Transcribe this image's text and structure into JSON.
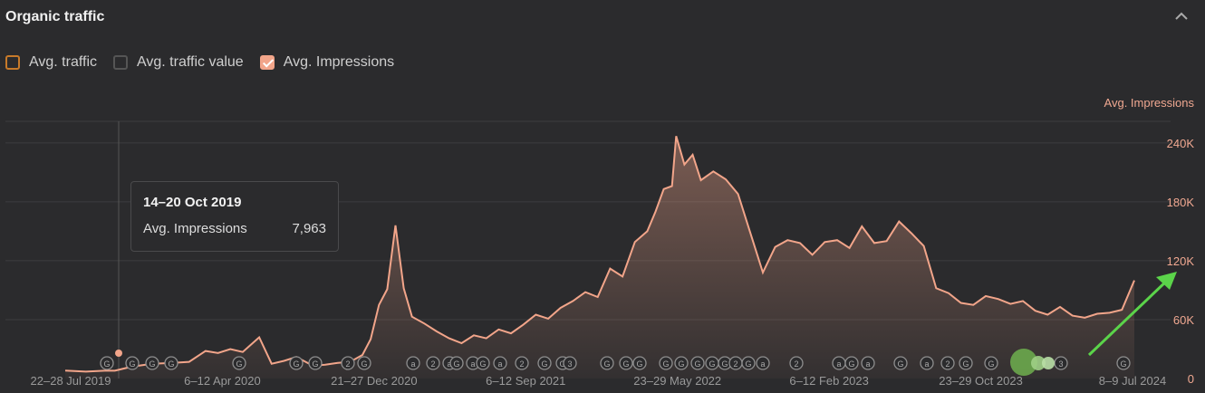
{
  "panel": {
    "title": "Organic traffic"
  },
  "legend": [
    {
      "label": "Avg. traffic",
      "checked": false,
      "color": "#c77a2a"
    },
    {
      "label": "Avg. traffic value",
      "checked": false,
      "color": "#555555"
    },
    {
      "label": "Avg. Impressions",
      "checked": true,
      "color": "#f2a58a"
    }
  ],
  "tooltip": {
    "date": "14–20 Oct 2019",
    "label": "Avg. Impressions",
    "value": "7,963"
  },
  "chart_data": {
    "type": "area",
    "ylabel": "Avg. Impressions",
    "ylim": [
      0,
      262000
    ],
    "yticks": [
      0,
      60000,
      120000,
      180000,
      240000
    ],
    "ytick_labels": [
      "0",
      "60K",
      "120K",
      "180K",
      "240K"
    ],
    "x_tick_labels": [
      "22–28 Jul 2019",
      "6–12 Apr 2020",
      "21–27 Dec 2020",
      "6–12 Sep 2021",
      "23–29 May 2022",
      "6–12 Feb 2023",
      "23–29 Oct 2023",
      "8–9 Jul 2024"
    ],
    "x_range": [
      "2019-07-22",
      "2024-07-08"
    ],
    "grid": true,
    "color": "#f2a58a",
    "series": [
      {
        "name": "Avg. Impressions",
        "x": [
          "2019-07-22",
          "2019-08-26",
          "2019-09-30",
          "2019-10-14",
          "2019-11-11",
          "2019-12-16",
          "2020-01-20",
          "2020-02-17",
          "2020-03-16",
          "2020-04-06",
          "2020-04-27",
          "2020-05-18",
          "2020-06-15",
          "2020-07-06",
          "2020-07-27",
          "2020-08-17",
          "2020-09-14",
          "2020-10-05",
          "2020-10-26",
          "2020-11-16",
          "2020-12-07",
          "2020-12-21",
          "2021-01-04",
          "2021-01-18",
          "2021-02-01",
          "2021-02-15",
          "2021-03-01",
          "2021-03-22",
          "2021-04-12",
          "2021-05-03",
          "2021-05-24",
          "2021-06-14",
          "2021-07-05",
          "2021-07-26",
          "2021-08-16",
          "2021-09-06",
          "2021-09-27",
          "2021-10-18",
          "2021-11-08",
          "2021-11-29",
          "2021-12-20",
          "2022-01-10",
          "2022-01-31",
          "2022-02-21",
          "2022-03-14",
          "2022-04-04",
          "2022-04-18",
          "2022-05-02",
          "2022-05-16",
          "2022-05-23",
          "2022-06-06",
          "2022-06-20",
          "2022-07-04",
          "2022-07-25",
          "2022-08-15",
          "2022-09-05",
          "2022-09-26",
          "2022-10-17",
          "2022-11-07",
          "2022-11-28",
          "2022-12-19",
          "2023-01-09",
          "2023-01-30",
          "2023-02-20",
          "2023-03-13",
          "2023-04-03",
          "2023-04-24",
          "2023-05-15",
          "2023-06-05",
          "2023-06-26",
          "2023-07-17",
          "2023-08-07",
          "2023-08-28",
          "2023-09-18",
          "2023-10-09",
          "2023-10-30",
          "2023-11-20",
          "2023-12-11",
          "2024-01-01",
          "2024-01-22",
          "2024-02-12",
          "2024-03-04",
          "2024-03-25",
          "2024-04-15",
          "2024-05-06",
          "2024-05-27",
          "2024-06-17",
          "2024-07-08"
        ],
        "y": [
          8000,
          7000,
          8000,
          7963,
          12000,
          15000,
          16000,
          17000,
          28000,
          26000,
          30000,
          27000,
          42000,
          15000,
          18000,
          22000,
          13000,
          14000,
          16000,
          17000,
          24000,
          40000,
          75000,
          91000,
          156000,
          92000,
          63000,
          56000,
          48000,
          41000,
          36000,
          44000,
          41000,
          50000,
          46000,
          55000,
          65000,
          61000,
          72000,
          79000,
          88000,
          83000,
          112000,
          104000,
          139000,
          150000,
          170000,
          193000,
          196000,
          247000,
          218000,
          228000,
          202000,
          211000,
          203000,
          188000,
          148000,
          108000,
          134000,
          141000,
          138000,
          126000,
          139000,
          141000,
          133000,
          155000,
          138000,
          140000,
          160000,
          148000,
          135000,
          92000,
          87000,
          77000,
          75000,
          84000,
          81000,
          76000,
          79000,
          69000,
          65000,
          73000,
          64000,
          62000,
          66000,
          67000,
          70000,
          100000
        ]
      }
    ]
  },
  "events": {
    "markers": [
      "G",
      "G",
      "G",
      "G",
      "G",
      "G",
      "G",
      "2",
      "G",
      "a",
      "2",
      "a",
      "G",
      "a",
      "G",
      "a",
      "2",
      "G",
      "G",
      "3",
      "G"
    ]
  },
  "colors": {
    "background": "#2b2b2d",
    "grid": "#3d3d3f",
    "accent": "#f2a58a",
    "axis_text": "#9a9a9a",
    "arrow": "#5bd44a",
    "event_blob": "#6ca84d"
  }
}
